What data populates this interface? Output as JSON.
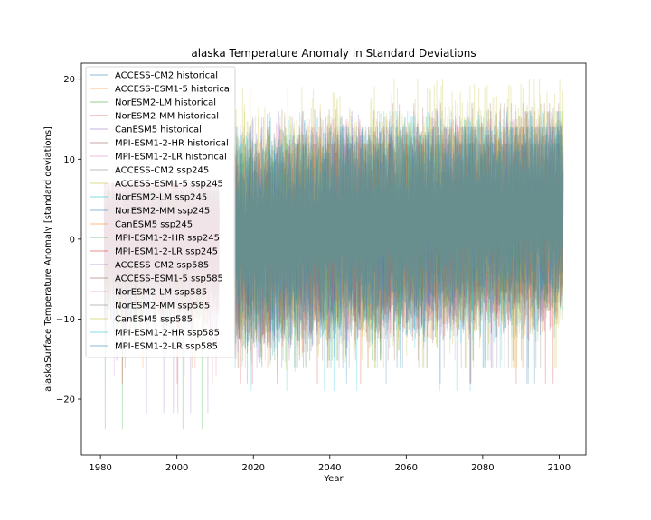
{
  "chart_data": {
    "type": "line",
    "title": "alaska Temperature Anomaly in Standard Deviations",
    "xlabel": "Year",
    "ylabel": "alaskaSurface Temperature Anomaly [standard deviations]",
    "xlim": [
      1975,
      2107
    ],
    "ylim": [
      -27,
      22
    ],
    "xticks": [
      1980,
      2000,
      2020,
      2040,
      2060,
      2080,
      2100
    ],
    "yticks": [
      -20,
      -10,
      0,
      10,
      20
    ],
    "legend_position": "upper-left",
    "series_alpha": 0.25,
    "historical_range": [
      1981,
      2011
    ],
    "scenario_range": [
      2015,
      2101
    ],
    "series": [
      {
        "name": "ACCESS-CM2 historical",
        "color": "#1f77b4",
        "period": "historical",
        "min": -16,
        "max": 7,
        "mean_start": 0,
        "mean_end": 0
      },
      {
        "name": "ACCESS-ESM1-5 historical",
        "color": "#ff7f0e",
        "period": "historical",
        "min": -17,
        "max": 7,
        "mean_start": 0,
        "mean_end": 0
      },
      {
        "name": "NorESM2-LM historical",
        "color": "#2ca02c",
        "period": "historical",
        "min": -25,
        "max": 6,
        "mean_start": 0,
        "mean_end": 0
      },
      {
        "name": "NorESM2-MM historical",
        "color": "#d62728",
        "period": "historical",
        "min": -19,
        "max": 7,
        "mean_start": 0,
        "mean_end": 0
      },
      {
        "name": "CanESM5 historical",
        "color": "#9467bd",
        "period": "historical",
        "min": -23,
        "max": 7,
        "mean_start": 0,
        "mean_end": 0
      },
      {
        "name": "MPI-ESM1-2-HR historical",
        "color": "#8c564b",
        "period": "historical",
        "min": -17,
        "max": 6,
        "mean_start": 0,
        "mean_end": 0
      },
      {
        "name": "MPI-ESM1-2-LR historical",
        "color": "#e377c2",
        "period": "historical",
        "min": -18,
        "max": 7,
        "mean_start": 0,
        "mean_end": 0
      },
      {
        "name": "ACCESS-CM2 ssp245",
        "color": "#7f7f7f",
        "period": "scenario",
        "min": -17,
        "max": 13,
        "mean_start": 0,
        "mean_end": 2
      },
      {
        "name": "ACCESS-ESM1-5 ssp245",
        "color": "#bcbd22",
        "period": "scenario",
        "min": -17,
        "max": 16,
        "mean_start": 0,
        "mean_end": 2
      },
      {
        "name": "NorESM2-LM ssp245",
        "color": "#17becf",
        "period": "scenario",
        "min": -20,
        "max": 13,
        "mean_start": 0,
        "mean_end": 2
      },
      {
        "name": "NorESM2-MM ssp245",
        "color": "#1f77b4",
        "period": "scenario",
        "min": -17,
        "max": 12,
        "mean_start": 0,
        "mean_end": 2
      },
      {
        "name": "CanESM5 ssp245",
        "color": "#ff7f0e",
        "period": "scenario",
        "min": -17,
        "max": 14,
        "mean_start": 0,
        "mean_end": 3
      },
      {
        "name": "MPI-ESM1-2-HR ssp245",
        "color": "#2ca02c",
        "period": "scenario",
        "min": -16,
        "max": 12,
        "mean_start": 0,
        "mean_end": 2
      },
      {
        "name": "MPI-ESM1-2-LR ssp245",
        "color": "#d62728",
        "period": "scenario",
        "min": -19,
        "max": 12,
        "mean_start": 0,
        "mean_end": 2
      },
      {
        "name": "ACCESS-CM2 ssp585",
        "color": "#9467bd",
        "period": "scenario",
        "min": -17,
        "max": 16,
        "mean_start": 0,
        "mean_end": 4
      },
      {
        "name": "ACCESS-ESM1-5 ssp585",
        "color": "#8c564b",
        "period": "scenario",
        "min": -16,
        "max": 17,
        "mean_start": 0,
        "mean_end": 4
      },
      {
        "name": "NorESM2-LM ssp585",
        "color": "#e377c2",
        "period": "scenario",
        "min": -16,
        "max": 15,
        "mean_start": 0,
        "mean_end": 4
      },
      {
        "name": "NorESM2-MM ssp585",
        "color": "#7f7f7f",
        "period": "scenario",
        "min": -17,
        "max": 14,
        "mean_start": 0,
        "mean_end": 4
      },
      {
        "name": "CanESM5 ssp585",
        "color": "#bcbd22",
        "period": "scenario",
        "min": -17,
        "max": 20,
        "mean_start": 0,
        "mean_end": 5
      },
      {
        "name": "MPI-ESM1-2-HR ssp585",
        "color": "#17becf",
        "period": "scenario",
        "min": -17,
        "max": 16,
        "mean_start": 0,
        "mean_end": 4
      },
      {
        "name": "MPI-ESM1-2-LR ssp585",
        "color": "#1f77b4",
        "period": "scenario",
        "min": -19,
        "max": 14,
        "mean_start": 0,
        "mean_end": 4
      }
    ]
  }
}
